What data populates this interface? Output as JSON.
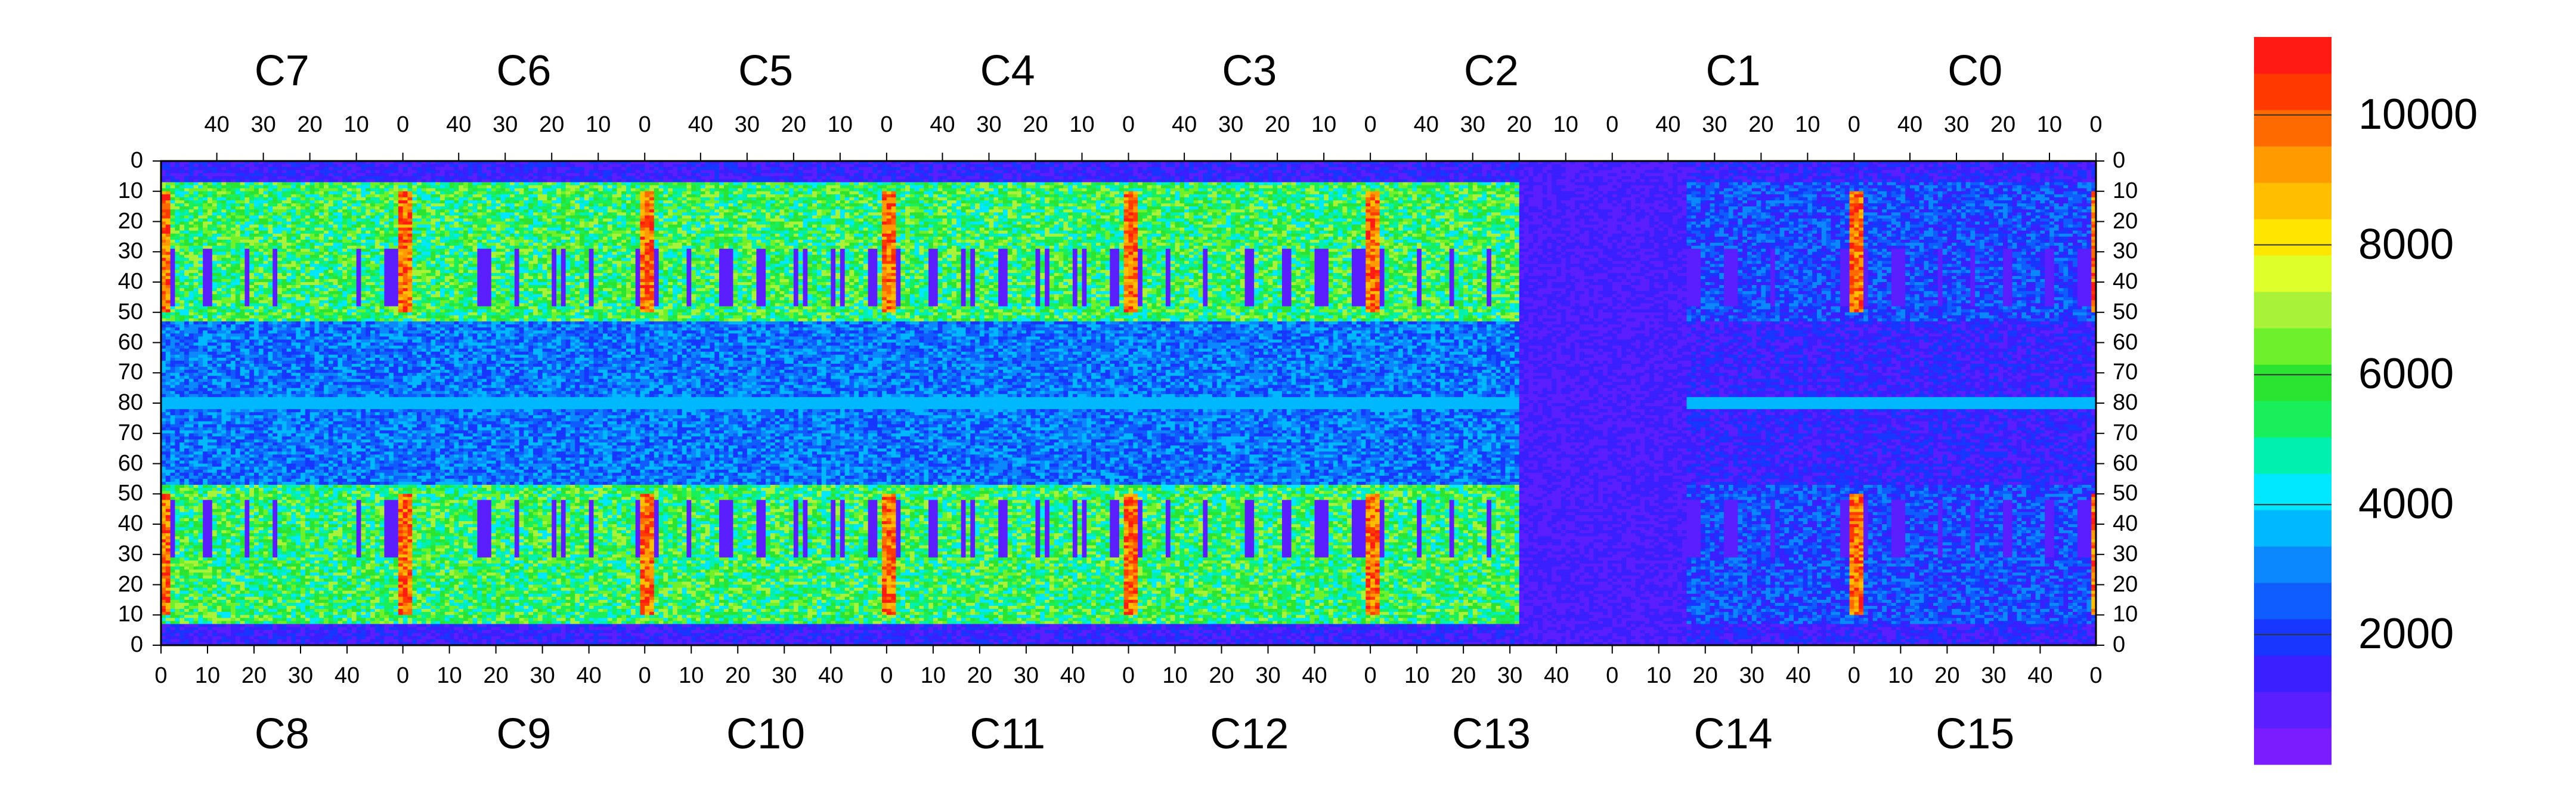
{
  "chart_data": {
    "type": "heatmap",
    "title": "",
    "xlabel": "",
    "ylabel": "",
    "top_chips": [
      "C7",
      "C6",
      "C5",
      "C4",
      "C3",
      "C2",
      "C1",
      "C0"
    ],
    "bottom_chips": [
      "C8",
      "C9",
      "C10",
      "C11",
      "C12",
      "C13",
      "C14",
      "C15"
    ],
    "top_tick_labels": [
      "40",
      "30",
      "20",
      "10",
      "0"
    ],
    "bottom_tick_labels": [
      "0",
      "10",
      "20",
      "30",
      "40"
    ],
    "y_tick_labels": [
      "0",
      "10",
      "20",
      "30",
      "40",
      "50",
      "60",
      "70",
      "80",
      "70",
      "60",
      "50",
      "40",
      "30",
      "20",
      "10",
      "0"
    ],
    "grid": {
      "columns_per_chip": 52,
      "chips_per_row": 8,
      "rows_per_half": 80,
      "x_range": [
        0,
        52
      ],
      "y_range": [
        0,
        80
      ]
    },
    "colorbar": {
      "range": [
        0,
        11200
      ],
      "tick_labels": [
        "10000",
        "8000",
        "6000",
        "4000",
        "2000"
      ],
      "tick_values": [
        10000,
        8000,
        6000,
        4000,
        2000
      ],
      "colors": [
        "#7a1cff",
        "#5b1fff",
        "#3a1fff",
        "#1736ff",
        "#0f5cff",
        "#0c88ff",
        "#00b8ff",
        "#00e8ff",
        "#00f0b0",
        "#18ef5a",
        "#2be432",
        "#6ef02a",
        "#a8f23a",
        "#dfff2a",
        "#ffe600",
        "#ffbf00",
        "#ff9a00",
        "#ff6a00",
        "#ff3a00",
        "#ff1a14"
      ]
    },
    "features": {
      "high_occupancy_columns_at_chip_edges": true,
      "central_row_band_y": 80,
      "low_occupancy_region_chips": [
        "C13",
        "C14",
        "C15",
        "C1",
        "C0"
      ],
      "white_pixels_region_chip": "C13"
    }
  }
}
